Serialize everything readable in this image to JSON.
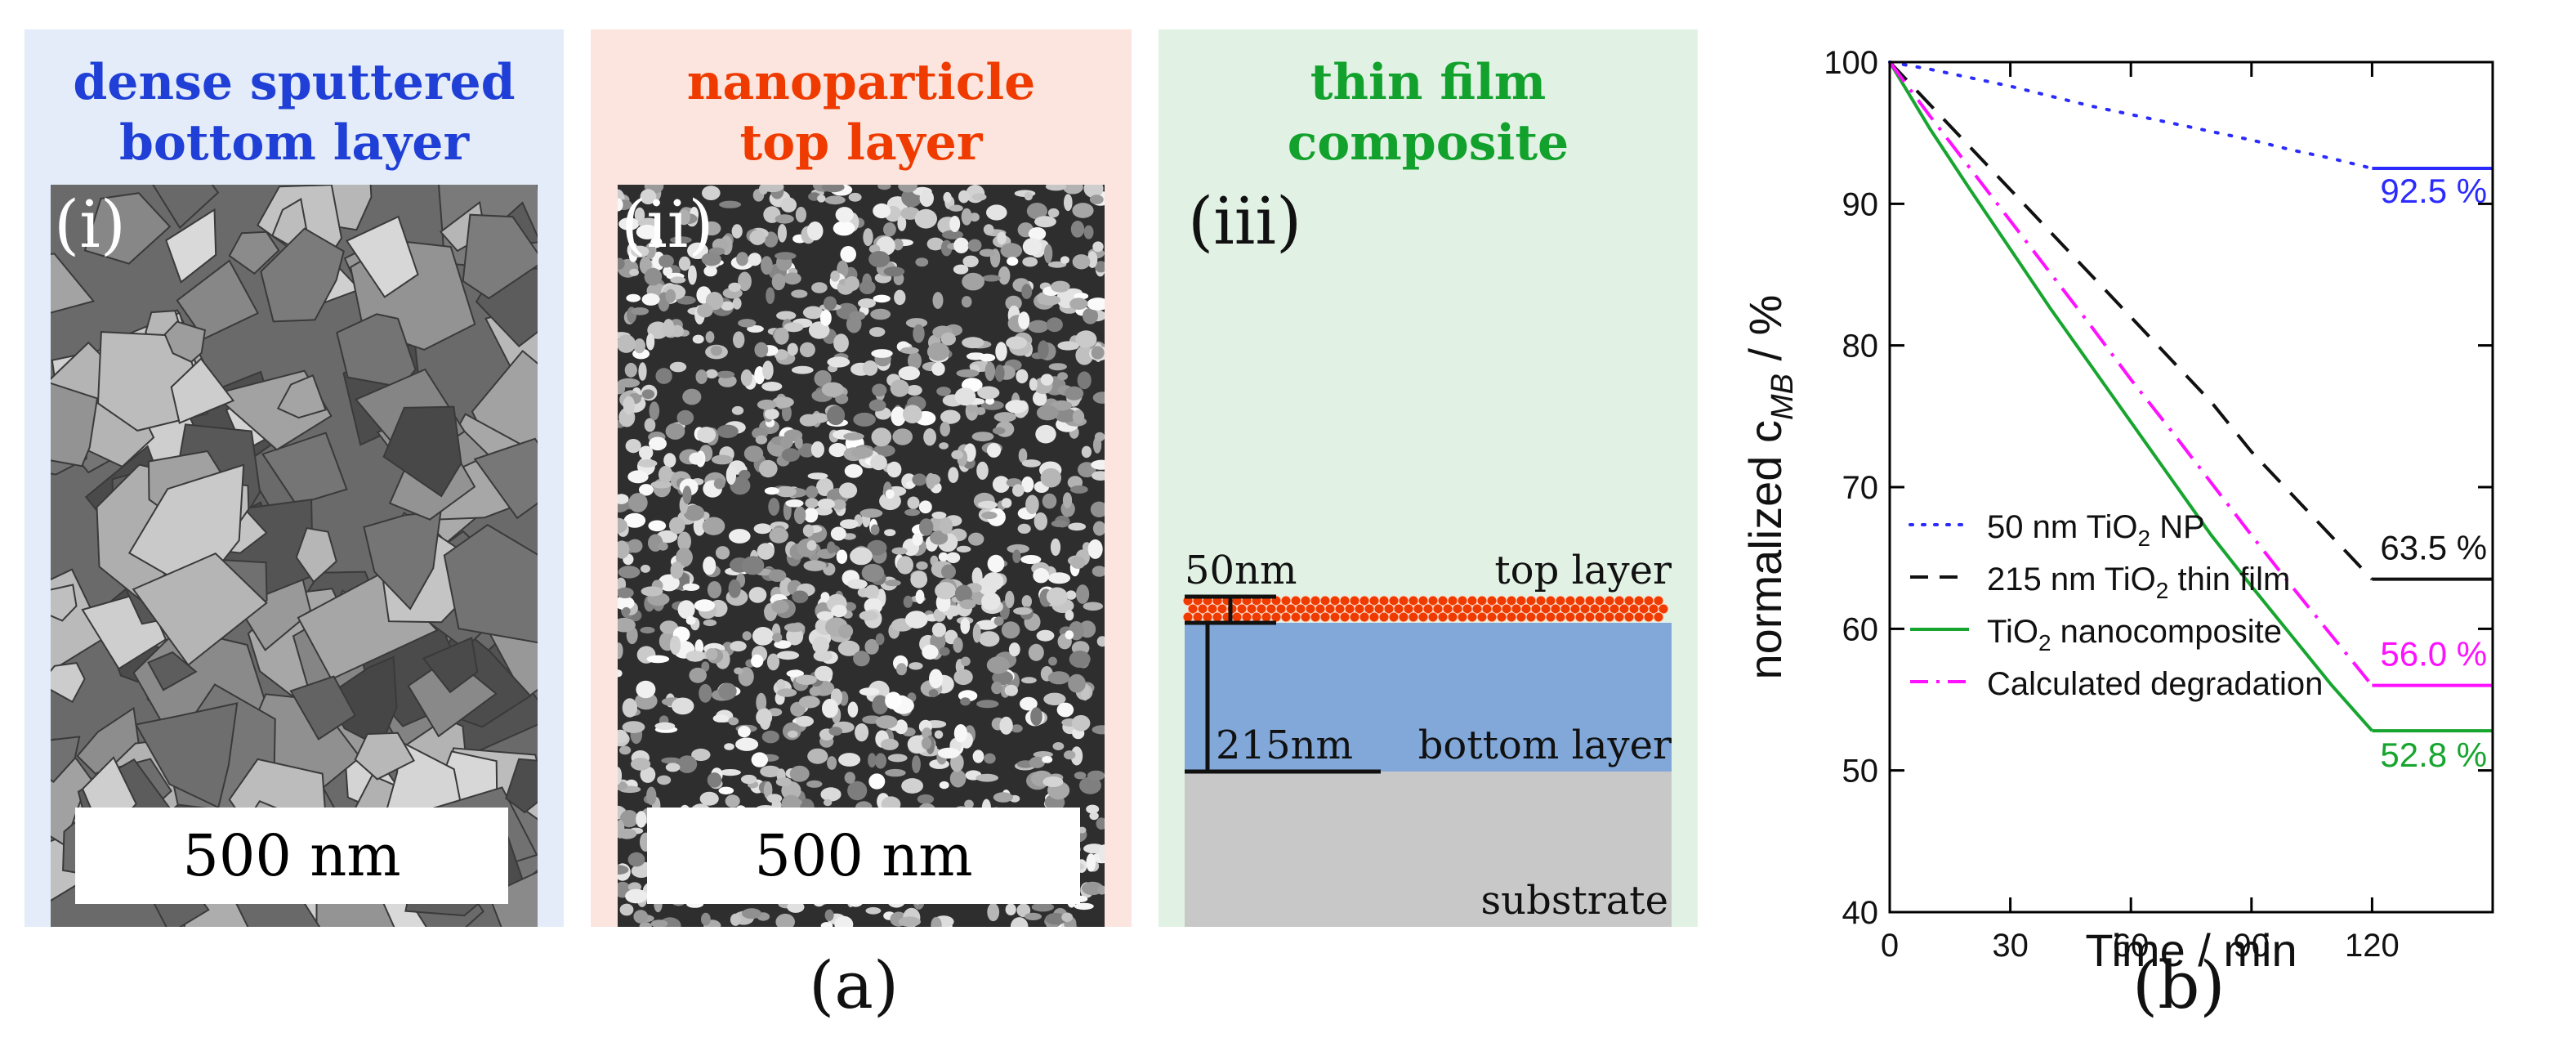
{
  "figure_a": {
    "label": "(a)",
    "panels": [
      {
        "roman": "(i)",
        "title_line1": "dense sputtered",
        "title_line2": "bottom layer",
        "scale": "500 nm",
        "bg": "#e3ecf8",
        "title_color": "#1f3fd6"
      },
      {
        "roman": "(ii)",
        "title_line1": "nanoparticle",
        "title_line2": "top layer",
        "scale": "500 nm",
        "bg": "#fbe5de",
        "title_color": "#ef3b00"
      },
      {
        "roman": "(iii)",
        "title_line1": "thin film",
        "title_line2": "composite",
        "bg": "#e1f2e4",
        "title_color": "#12a12c"
      }
    ],
    "schematic": {
      "top_thickness": "50nm",
      "top_label": "top layer",
      "bottom_thickness": "215nm",
      "bottom_label": "bottom layer",
      "substrate_label": "substrate",
      "colors": {
        "particles": "#ef3b00",
        "bottom": "#81a8d8",
        "substrate": "#c8c8c8"
      }
    }
  },
  "figure_b": {
    "label": "(b)",
    "chart_data": {
      "type": "line",
      "xlabel": "Time / min",
      "ylabel_parts": {
        "pre": "normalized c",
        "sub": "MB",
        "post": " / %"
      },
      "xlim": [
        0,
        150
      ],
      "ylim": [
        40,
        100
      ],
      "xticks": [
        0,
        30,
        60,
        90,
        120
      ],
      "yticks": [
        40,
        50,
        60,
        70,
        80,
        90,
        100
      ],
      "series": [
        {
          "legend_pre": "50 nm TiO",
          "legend_sub": "2",
          "legend_post": " NP",
          "color": "#2b2bff",
          "dash": "dot",
          "x": [
            0,
            10,
            20,
            30,
            40,
            50,
            60,
            70,
            80,
            90,
            100,
            110,
            120
          ],
          "y": [
            100,
            99.5,
            98.9,
            98.3,
            97.6,
            96.9,
            96.3,
            95.7,
            95.1,
            94.5,
            93.8,
            93.2,
            92.5
          ],
          "end_value": 92.5,
          "end_label": "92.5 %"
        },
        {
          "legend_pre": "215 nm TiO",
          "legend_sub": "2",
          "legend_post": " thin film",
          "color": "#111111",
          "dash": "dash",
          "x": [
            0,
            10,
            20,
            30,
            40,
            50,
            60,
            70,
            80,
            90,
            100,
            110,
            120
          ],
          "y": [
            100,
            97,
            94,
            91,
            88,
            85,
            82,
            79,
            76,
            72.5,
            69.5,
            66.5,
            63.5
          ],
          "end_value": 63.5,
          "end_label": "63.5 %"
        },
        {
          "legend_pre": "TiO",
          "legend_sub": "2",
          "legend_post": " nanocomposite",
          "color": "#17a52f",
          "dash": "solid",
          "x": [
            0,
            10,
            20,
            30,
            40,
            50,
            60,
            70,
            80,
            90,
            100,
            110,
            120
          ],
          "y": [
            100,
            95.3,
            91,
            86.8,
            82.6,
            78.6,
            74.6,
            70.6,
            66.6,
            63,
            59.5,
            56,
            52.8
          ],
          "end_value": 52.8,
          "end_label": "52.8 %"
        },
        {
          "legend_pre": "Calculated degradation",
          "legend_sub": "",
          "legend_post": "",
          "color": "#ff10ff",
          "dash": "dashdot",
          "x": [
            0,
            10,
            20,
            30,
            40,
            50,
            60,
            70,
            80,
            90,
            100,
            110,
            120
          ],
          "y": [
            100,
            96.2,
            92.5,
            88.8,
            85.1,
            81.4,
            77.6,
            74,
            70.3,
            66.6,
            63,
            59.5,
            56
          ],
          "end_value": 56.0,
          "end_label": "56.0 %"
        }
      ]
    }
  }
}
